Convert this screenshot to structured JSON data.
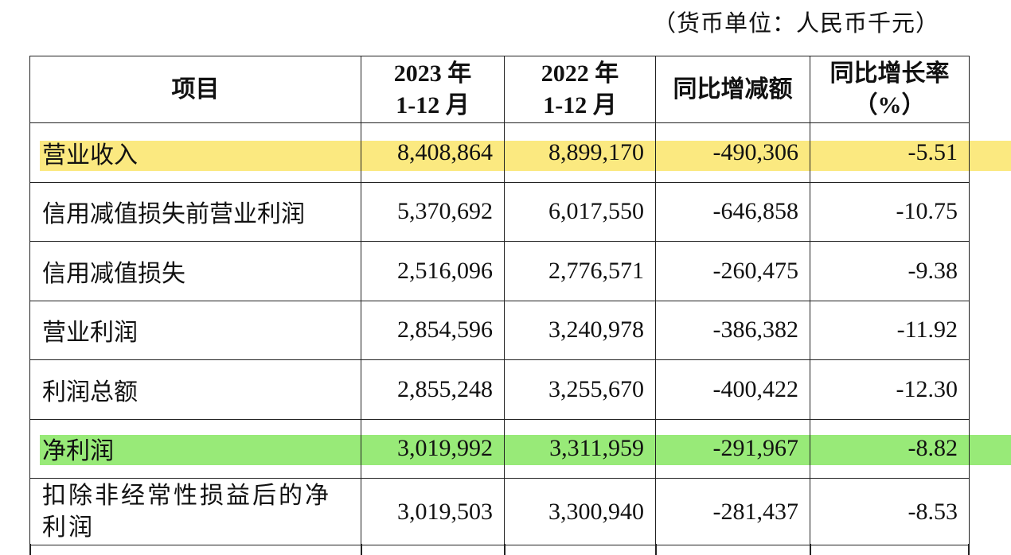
{
  "currency_note": "（货币单位：人民币千元）",
  "headers": {
    "item": "项目",
    "y2023_line1": "2023 年",
    "y2023_line2": "1-12 月",
    "y2022_line1": "2022 年",
    "y2022_line2": "1-12 月",
    "change": "同比增减额",
    "rate_line1": "同比增长率",
    "rate_line2": "（%）"
  },
  "rows": [
    {
      "name": "营业收入",
      "v2023": "8,408,864",
      "v2022": "8,899,170",
      "change": "-490,306",
      "rate": "-5.51",
      "highlight": "#fbe980"
    },
    {
      "name": "信用减值损失前营业利润",
      "v2023": "5,370,692",
      "v2022": "6,017,550",
      "change": "-646,858",
      "rate": "-10.75"
    },
    {
      "name": "信用减值损失",
      "v2023": "2,516,096",
      "v2022": "2,776,571",
      "change": "-260,475",
      "rate": "-9.38"
    },
    {
      "name": "营业利润",
      "v2023": "2,854,596",
      "v2022": "3,240,978",
      "change": "-386,382",
      "rate": "-11.92"
    },
    {
      "name": "利润总额",
      "v2023": "2,855,248",
      "v2022": "3,255,670",
      "change": "-400,422",
      "rate": "-12.30"
    },
    {
      "name": "净利润",
      "v2023": "3,019,992",
      "v2022": "3,311,959",
      "change": "-291,967",
      "rate": "-8.82",
      "highlight": "#98ea78"
    },
    {
      "name": "扣除非经常性损益后的净利润",
      "v2023": "3,019,503",
      "v2022": "3,300,940",
      "change": "-281,437",
      "rate": "-8.53"
    }
  ]
}
